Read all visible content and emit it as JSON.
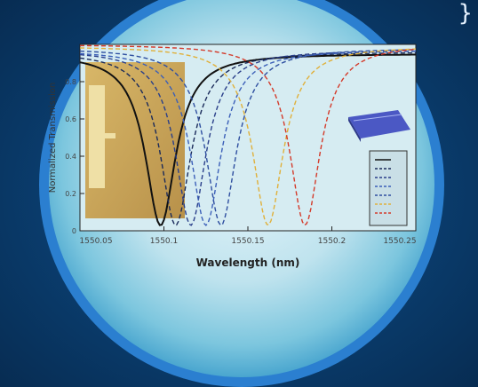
{
  "chart_data": {
    "type": "line",
    "title": "",
    "xlabel": "Wavelength (nm)",
    "ylabel": "Normalized Transmission",
    "xlim": [
      1550.05,
      1550.25
    ],
    "ylim": [
      0,
      1
    ],
    "x_ticks": [
      {
        "value": 1550.05,
        "label": "1550.05"
      },
      {
        "value": 1550.1,
        "label": "1550.1"
      },
      {
        "value": 1550.15,
        "label": "1550.15"
      },
      {
        "value": 1550.2,
        "label": "1550.2"
      },
      {
        "value": 1550.25,
        "label": "1550.25"
      }
    ],
    "y_ticks": [
      {
        "value": 0,
        "label": "0"
      },
      {
        "value": 0.2,
        "label": "0.2"
      },
      {
        "value": 0.4,
        "label": "0.4"
      },
      {
        "value": 0.6,
        "label": "0.6"
      },
      {
        "value": 0.8,
        "label": "0.8"
      }
    ],
    "grid": false,
    "legend": "right",
    "series": [
      {
        "color": "#111111",
        "dash": "solid",
        "center": 1550.098,
        "width": 0.011,
        "depth": 0.97,
        "baseline": 0.95
      },
      {
        "color": "#1a2a5a",
        "dash": "dashed",
        "center": 1550.107,
        "width": 0.011,
        "depth": 0.97,
        "baseline": 0.96
      },
      {
        "color": "#2a3f8a",
        "dash": "dashed",
        "center": 1550.116,
        "width": 0.011,
        "depth": 0.97,
        "baseline": 0.97
      },
      {
        "color": "#3b5fb8",
        "dash": "dashed",
        "center": 1550.125,
        "width": 0.011,
        "depth": 0.97,
        "baseline": 0.97
      },
      {
        "color": "#2f4fa0",
        "dash": "dashed",
        "center": 1550.134,
        "width": 0.011,
        "depth": 0.97,
        "baseline": 0.98
      },
      {
        "color": "#e0b03a",
        "dash": "dashed",
        "center": 1550.162,
        "width": 0.011,
        "depth": 0.97,
        "baseline": 0.99
      },
      {
        "color": "#d43a2a",
        "dash": "dashed",
        "center": 1550.184,
        "width": 0.011,
        "depth": 0.97,
        "baseline": 1.0
      }
    ]
  },
  "colors": {
    "background": "#0a3d6e",
    "disc_rim": "#2b7fd0",
    "plot_bg": "#cfe6ee",
    "gold_inset": "#c9a55a",
    "chip_inset": "#5563c9"
  },
  "decor": {
    "corner_glyph": "}"
  }
}
